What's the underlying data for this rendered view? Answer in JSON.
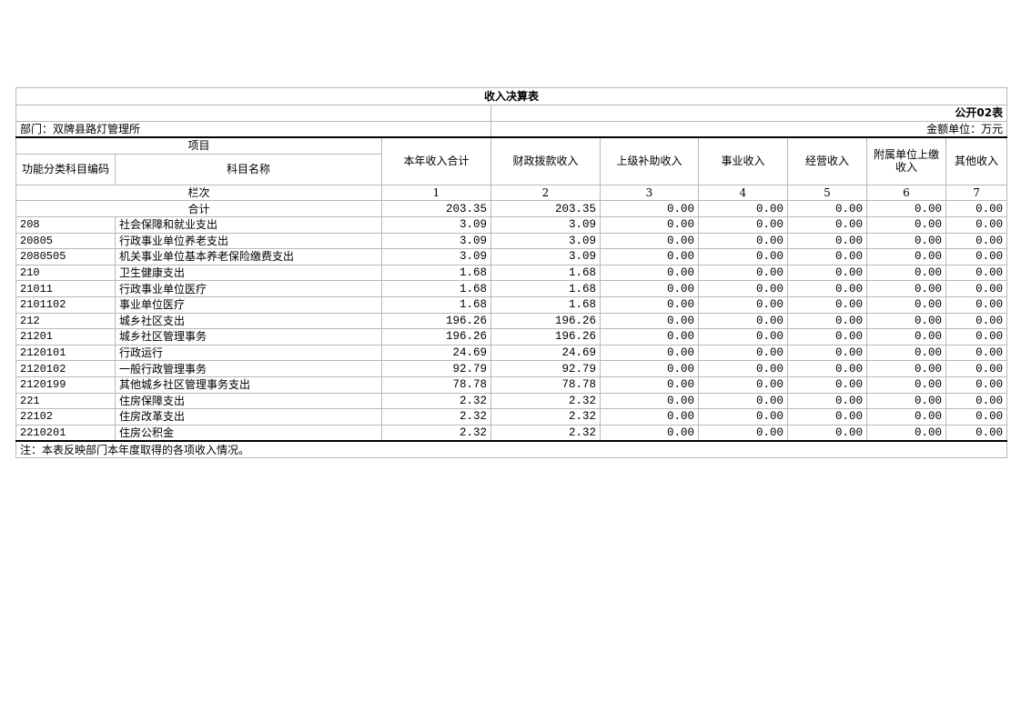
{
  "title": "收入决算表",
  "table_code": "公开02表",
  "department": "部门：双牌县路灯管理所",
  "unit": "金额单位：万元",
  "headers": {
    "item": "项目",
    "code": "功能分类科目编码",
    "name": "科目名称",
    "columns": [
      "本年收入合计",
      "财政拨款收入",
      "上级补助收入",
      "事业收入",
      "经营收入",
      "附属单位上缴收入",
      "其他收入"
    ]
  },
  "column_index_label": "栏次",
  "column_indices": [
    "1",
    "2",
    "3",
    "4",
    "5",
    "6",
    "7"
  ],
  "total": {
    "label": "合计",
    "values": [
      "203.35",
      "203.35",
      "0.00",
      "0.00",
      "0.00",
      "0.00",
      "0.00"
    ]
  },
  "rows": [
    {
      "code": "208",
      "name": "社会保障和就业支出",
      "values": [
        "3.09",
        "3.09",
        "0.00",
        "0.00",
        "0.00",
        "0.00",
        "0.00"
      ]
    },
    {
      "code": "20805",
      "name": "行政事业单位养老支出",
      "values": [
        "3.09",
        "3.09",
        "0.00",
        "0.00",
        "0.00",
        "0.00",
        "0.00"
      ]
    },
    {
      "code": "2080505",
      "name": "机关事业单位基本养老保险缴费支出",
      "values": [
        "3.09",
        "3.09",
        "0.00",
        "0.00",
        "0.00",
        "0.00",
        "0.00"
      ]
    },
    {
      "code": "210",
      "name": "卫生健康支出",
      "values": [
        "1.68",
        "1.68",
        "0.00",
        "0.00",
        "0.00",
        "0.00",
        "0.00"
      ]
    },
    {
      "code": "21011",
      "name": "行政事业单位医疗",
      "values": [
        "1.68",
        "1.68",
        "0.00",
        "0.00",
        "0.00",
        "0.00",
        "0.00"
      ]
    },
    {
      "code": "2101102",
      "name": "事业单位医疗",
      "values": [
        "1.68",
        "1.68",
        "0.00",
        "0.00",
        "0.00",
        "0.00",
        "0.00"
      ]
    },
    {
      "code": "212",
      "name": "城乡社区支出",
      "values": [
        "196.26",
        "196.26",
        "0.00",
        "0.00",
        "0.00",
        "0.00",
        "0.00"
      ]
    },
    {
      "code": "21201",
      "name": "城乡社区管理事务",
      "values": [
        "196.26",
        "196.26",
        "0.00",
        "0.00",
        "0.00",
        "0.00",
        "0.00"
      ]
    },
    {
      "code": "2120101",
      "name": "行政运行",
      "values": [
        "24.69",
        "24.69",
        "0.00",
        "0.00",
        "0.00",
        "0.00",
        "0.00"
      ]
    },
    {
      "code": "2120102",
      "name": "一般行政管理事务",
      "values": [
        "92.79",
        "92.79",
        "0.00",
        "0.00",
        "0.00",
        "0.00",
        "0.00"
      ]
    },
    {
      "code": "2120199",
      "name": "其他城乡社区管理事务支出",
      "values": [
        "78.78",
        "78.78",
        "0.00",
        "0.00",
        "0.00",
        "0.00",
        "0.00"
      ]
    },
    {
      "code": "221",
      "name": "住房保障支出",
      "values": [
        "2.32",
        "2.32",
        "0.00",
        "0.00",
        "0.00",
        "0.00",
        "0.00"
      ]
    },
    {
      "code": "22102",
      "name": "住房改革支出",
      "values": [
        "2.32",
        "2.32",
        "0.00",
        "0.00",
        "0.00",
        "0.00",
        "0.00"
      ]
    },
    {
      "code": "2210201",
      "name": "住房公积金",
      "values": [
        "2.32",
        "2.32",
        "0.00",
        "0.00",
        "0.00",
        "0.00",
        "0.00"
      ]
    }
  ],
  "note": "注：本表反映部门本年度取得的各项收入情况。"
}
